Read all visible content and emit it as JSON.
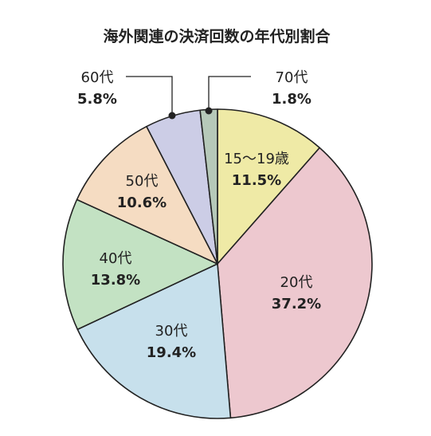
{
  "chart_data": {
    "type": "pie",
    "title": "海外関連の決済回数の年代別割合",
    "slices": [
      {
        "label": "15〜19歳",
        "value": 11.5,
        "value_label": "11.5%",
        "color": "#efeaa6"
      },
      {
        "label": "20代",
        "value": 37.2,
        "value_label": "37.2%",
        "color": "#edc8cf"
      },
      {
        "label": "30代",
        "value": 19.4,
        "value_label": "19.4%",
        "color": "#c7e0ec"
      },
      {
        "label": "40代",
        "value": 13.8,
        "value_label": "13.8%",
        "color": "#c3e2c3"
      },
      {
        "label": "50代",
        "value": 10.6,
        "value_label": "10.6%",
        "color": "#f5dcc2"
      },
      {
        "label": "60代",
        "value": 5.8,
        "value_label": "5.8%",
        "color": "#cccde6"
      },
      {
        "label": "70代",
        "value": 1.8,
        "value_label": "1.8%",
        "color": "#b6c9b9"
      }
    ],
    "start": "12 o'clock",
    "direction": "clockwise"
  }
}
